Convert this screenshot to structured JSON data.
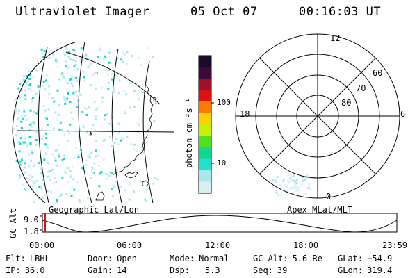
{
  "header": {
    "instrument": "Ultraviolet Imager",
    "date": "05 Oct 07",
    "time": "00:16:03 UT"
  },
  "map_panel": {
    "label": "Geographic Lat/Lon"
  },
  "polar_panel": {
    "label": "Apex MLat/MLT",
    "mlt_labels": {
      "top": "12",
      "right": "6",
      "bottom": "0",
      "left": "18"
    },
    "lat_labels": [
      "60",
      "70",
      "80"
    ]
  },
  "colorbar": {
    "unit_label": "photon cm⁻²s⁻¹",
    "ticks": [
      "100",
      "10"
    ],
    "colors": [
      "#1a0a2a",
      "#3a0a3a",
      "#a0102a",
      "#e01010",
      "#ff7a00",
      "#ffd000",
      "#c8f000",
      "#50e020",
      "#10d890",
      "#20e0d0",
      "#a8e8ec",
      "#d8f0f2"
    ]
  },
  "timeline": {
    "y_label": "GC Alt",
    "y_ticks": [
      "9.0",
      "1.8"
    ],
    "x_ticks": [
      "00:00",
      "06:00",
      "12:00",
      "18:00",
      "23:59"
    ],
    "cursor_color": "#e01010"
  },
  "info": {
    "flt_label": "Flt:",
    "flt_value": "LBHL",
    "ip_label": "IP:",
    "ip_value": "36.0",
    "door_label": "Door:",
    "door_value": "Open",
    "gain_label": "Gain:",
    "gain_value": "14",
    "mode_label": "Mode:",
    "mode_value": "Normal",
    "dsp_label": "Dsp:",
    "dsp_value": "5.3",
    "gcalt_label": "GC Alt:",
    "gcalt_value": "5.6 Re",
    "seq_label": "Seq:",
    "seq_value": "39",
    "glat_label": "GLat:",
    "glat_value": "−54.9",
    "glon_label": "GLon:",
    "glon_value": "319.4"
  },
  "accent_color": "#20d8c8"
}
